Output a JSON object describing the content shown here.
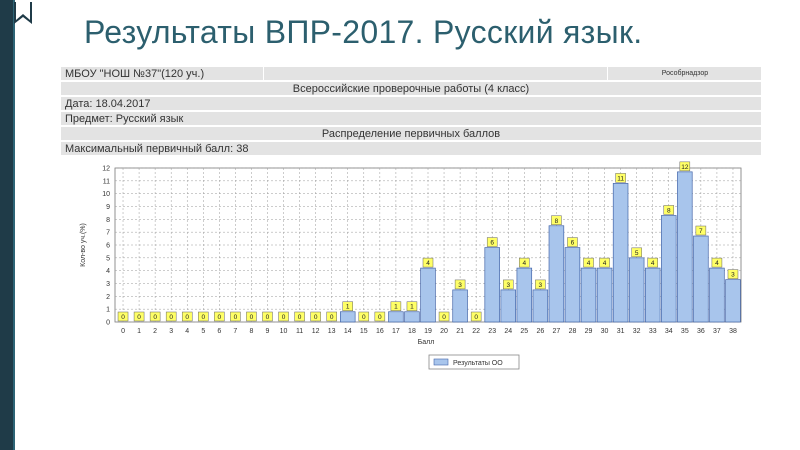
{
  "slide": {
    "title": "Результаты ВПР-2017. Русский язык."
  },
  "info_table": {
    "school": "МБОУ \"НОШ №37\"(120 уч.)",
    "agency": "Рособрнадзор",
    "work_title": "Всероссийские проверочные работы (4 класс)",
    "date": "Дата: 18.04.2017",
    "subject": "Предмет: Русский язык",
    "section_title": "Распределение первичных баллов",
    "max_score": "Максимальный первичный балл: 38"
  },
  "colors": {
    "bar_fill": "#a8c5ec",
    "bar_stroke": "#4466aa",
    "label_fill": "#ffff66",
    "title": "#2c5f6e",
    "left_strip": "#1f3b48"
  },
  "chart_data": {
    "type": "bar",
    "title": "",
    "xlabel": "Балл",
    "ylabel": "Кол-во уч.(%)",
    "ylim": [
      0,
      12
    ],
    "yticks": [
      0,
      1,
      2,
      3,
      4,
      5,
      6,
      7,
      8,
      9,
      10,
      11,
      12
    ],
    "grid": true,
    "legend_position": "bottom",
    "categories": [
      "0",
      "1",
      "2",
      "3",
      "4",
      "5",
      "6",
      "7",
      "8",
      "9",
      "10",
      "11",
      "12",
      "13",
      "14",
      "15",
      "16",
      "17",
      "18",
      "19",
      "20",
      "21",
      "22",
      "23",
      "24",
      "25",
      "26",
      "27",
      "28",
      "29",
      "30",
      "31",
      "32",
      "33",
      "34",
      "35",
      "36",
      "37",
      "38"
    ],
    "series": [
      {
        "name": "Результаты ОО",
        "values": [
          0,
          0,
          0,
          0,
          0,
          0,
          0,
          0,
          0,
          0,
          0,
          0,
          0,
          0,
          0.8,
          0,
          0,
          0.8,
          0.8,
          4.2,
          0,
          2.5,
          0,
          5.8,
          2.5,
          4.2,
          2.5,
          7.5,
          5.8,
          4.2,
          4.2,
          10.8,
          5,
          4.2,
          8.3,
          11.7,
          6.7,
          4.2,
          3.3
        ],
        "labels": [
          "0",
          "0",
          "0",
          "0",
          "0",
          "0",
          "0",
          "0",
          "0",
          "0",
          "0",
          "0",
          "0",
          "0",
          "1",
          "0",
          "0",
          "1",
          "1",
          "4",
          "0",
          "3",
          "0",
          "6",
          "3",
          "4",
          "3",
          "8",
          "6",
          "4",
          "4",
          "11",
          "5",
          "4",
          "8",
          "12",
          "7",
          "4",
          "3"
        ]
      }
    ]
  }
}
